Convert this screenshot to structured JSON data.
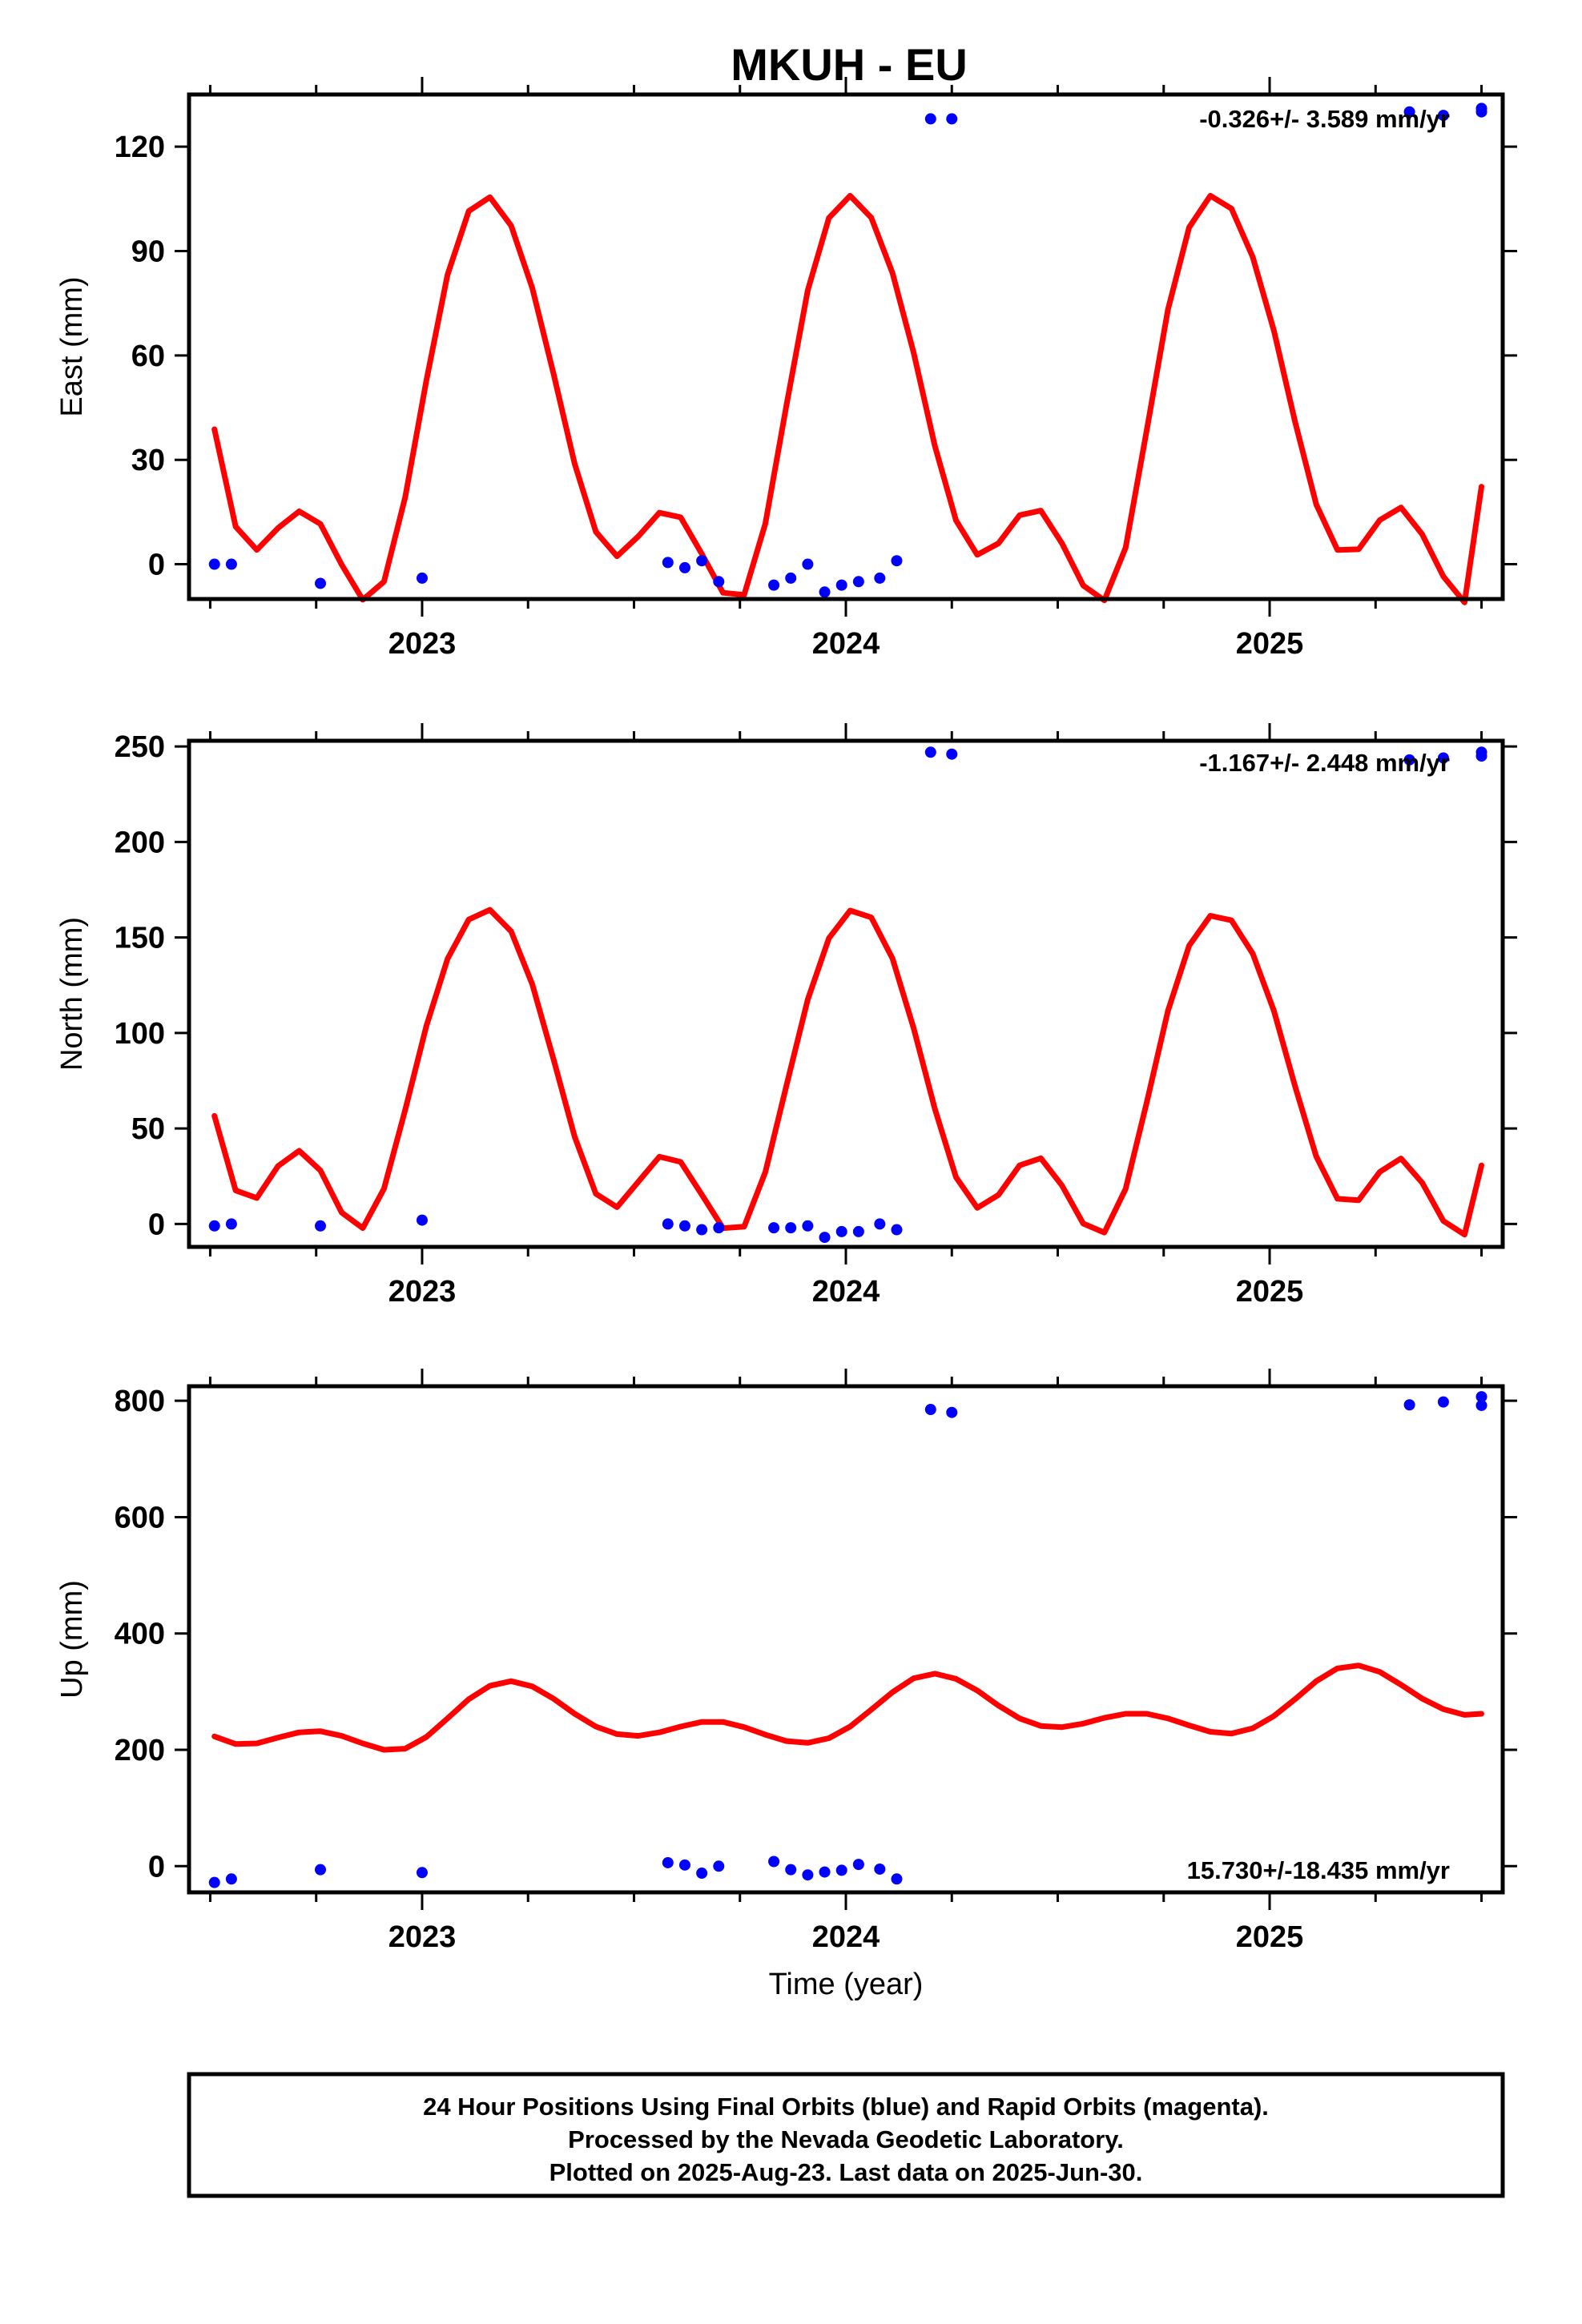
{
  "colors": {
    "data_points": "#0000ff",
    "model_curve": "#ff0000",
    "frame": "#000000"
  },
  "chart_data": {
    "title": "MKUH - EU",
    "xlabel": "Time (year)",
    "xlim": [
      2022.45,
      2025.55
    ],
    "xticks": [
      2023,
      2024,
      2025
    ],
    "xtick_labels": [
      "2023",
      "2024",
      "2025"
    ],
    "minor_xtick_step": 0.25,
    "grid": false,
    "footer": [
      "24 Hour Positions Using Final Orbits (blue) and Rapid Orbits (magenta).",
      "Processed by the Nevada Geodetic Laboratory.",
      "Plotted on 2025-Aug-23. Last data on 2025-Jun-30."
    ],
    "panels": [
      {
        "type": "scatter",
        "ylabel": "East (mm)",
        "ylim": [
          -10,
          135
        ],
        "yticks": [
          0,
          30,
          60,
          90,
          120
        ],
        "rate": "-0.326+/- 3.589 mm/yr",
        "rate_position": "top-right",
        "points": {
          "x": [
            2022.51,
            2022.55,
            2022.76,
            2023.0,
            2023.58,
            2023.62,
            2023.66,
            2023.7,
            2023.83,
            2023.87,
            2023.91,
            2023.95,
            2023.99,
            2024.03,
            2024.08,
            2024.12,
            2024.2,
            2024.25,
            2025.33,
            2025.41,
            2025.5,
            2025.5
          ],
          "y": [
            0,
            0,
            -5.5,
            -4,
            0.5,
            -1,
            1,
            -5,
            -6,
            -4,
            0,
            -8,
            -6,
            -5,
            -4,
            1,
            128,
            128,
            130,
            129,
            131,
            130
          ]
        },
        "curve": {
          "x": [
            2022.51,
            2022.56,
            2022.61,
            2022.66,
            2022.71,
            2022.76,
            2022.81,
            2022.86,
            2022.91,
            2022.96,
            2023.01,
            2023.06,
            2023.11,
            2023.16,
            2023.21,
            2023.26,
            2023.31,
            2023.36,
            2023.41,
            2023.46,
            2023.51,
            2023.56,
            2023.61,
            2023.66,
            2023.71,
            2023.76,
            2023.81,
            2023.86,
            2023.91,
            2023.96,
            2024.01,
            2024.06,
            2024.11,
            2024.16,
            2024.21,
            2024.26,
            2024.31,
            2024.36,
            2024.41,
            2024.46,
            2024.51,
            2024.56,
            2024.61,
            2024.66,
            2024.71,
            2024.76,
            2024.81,
            2024.86,
            2024.91,
            2024.96,
            2025.01,
            2025.06,
            2025.11,
            2025.16,
            2025.21,
            2025.26,
            2025.31,
            2025.36,
            2025.41,
            2025.46,
            2025.5
          ],
          "y": [
            38.8,
            10.8,
            4.1,
            10.4,
            15.2,
            11.6,
            -0.1,
            -10.2,
            -5.0,
            19.2,
            52.8,
            83.2,
            101.5,
            105.5,
            97.3,
            79.4,
            54.8,
            28.9,
            9.3,
            2.3,
            8.0,
            14.8,
            13.5,
            3.0,
            -8.2,
            -8.8,
            11.7,
            45.8,
            78.7,
            99.5,
            105.9,
            99.6,
            83.7,
            60.8,
            34.0,
            12.6,
            2.7,
            6.0,
            14.1,
            15.4,
            6.0,
            -6.1,
            -10.4,
            4.7,
            38.5,
            73.2,
            96.8,
            105.9,
            102.2,
            88.3,
            67.2,
            40.9,
            17.2,
            4.1,
            4.3,
            12.7,
            16.3,
            8.6,
            -3.5,
            -11.0,
            22.3
          ]
        }
      },
      {
        "type": "scatter",
        "ylabel": "North (mm)",
        "ylim": [
          -12,
          253
        ],
        "yticks": [
          0,
          50,
          100,
          150,
          200,
          250
        ],
        "rate": "-1.167+/- 2.448 mm/yr",
        "rate_position": "top-right",
        "points": {
          "x": [
            2022.51,
            2022.55,
            2022.76,
            2023.0,
            2023.58,
            2023.62,
            2023.66,
            2023.7,
            2023.83,
            2023.87,
            2023.91,
            2023.95,
            2023.99,
            2024.03,
            2024.08,
            2024.12,
            2024.2,
            2024.25,
            2025.33,
            2025.41,
            2025.5,
            2025.5
          ],
          "y": [
            -1,
            0,
            -1,
            2,
            0,
            -1,
            -3,
            -2,
            -2,
            -2,
            -1,
            -7,
            -4,
            -4,
            0,
            -3,
            247,
            246,
            243,
            244,
            247,
            245
          ]
        },
        "curve": {
          "x": [
            2022.51,
            2022.56,
            2022.61,
            2022.66,
            2022.71,
            2022.76,
            2022.81,
            2022.86,
            2022.91,
            2022.96,
            2023.01,
            2023.06,
            2023.11,
            2023.16,
            2023.21,
            2023.26,
            2023.31,
            2023.36,
            2023.41,
            2023.46,
            2023.51,
            2023.56,
            2023.61,
            2023.66,
            2023.71,
            2023.76,
            2023.81,
            2023.86,
            2023.91,
            2023.96,
            2024.01,
            2024.06,
            2024.11,
            2024.16,
            2024.21,
            2024.26,
            2024.31,
            2024.36,
            2024.41,
            2024.46,
            2024.51,
            2024.56,
            2024.61,
            2024.66,
            2024.71,
            2024.76,
            2024.81,
            2024.86,
            2024.91,
            2024.96,
            2025.01,
            2025.06,
            2025.11,
            2025.16,
            2025.21,
            2025.26,
            2025.31,
            2025.36,
            2025.41,
            2025.46,
            2025.5
          ],
          "y": [
            56.6,
            17.5,
            13.6,
            30.3,
            38.3,
            28.0,
            6.0,
            -2.2,
            18.5,
            59.6,
            103.7,
            138.8,
            159.4,
            164.5,
            153.2,
            125.5,
            86.3,
            45.7,
            15.8,
            8.8,
            22.1,
            35.2,
            32.5,
            15.4,
            -2.2,
            -1.4,
            27.2,
            72.6,
            117.5,
            149.6,
            164.1,
            160.5,
            139.0,
            102.5,
            60.3,
            24.5,
            8.4,
            15.2,
            30.7,
            34.4,
            20.1,
            0.2,
            -4.5,
            18.3,
            63.6,
            111.6,
            145.7,
            161.4,
            159.0,
            141.6,
            111.7,
            72.1,
            35.4,
            13.2,
            12.4,
            27.3,
            34.3,
            21.6,
            1.6,
            -5.6,
            30.7
          ]
        }
      },
      {
        "type": "scatter",
        "ylabel": "Up (mm)",
        "ylim": [
          -45,
          825
        ],
        "yticks": [
          0,
          200,
          400,
          600,
          800
        ],
        "rate": "15.730+/-18.435 mm/yr",
        "rate_position": "bottom-right",
        "points": {
          "x": [
            2022.51,
            2022.55,
            2022.76,
            2023.0,
            2023.58,
            2023.62,
            2023.66,
            2023.7,
            2023.83,
            2023.87,
            2023.91,
            2023.95,
            2023.99,
            2024.03,
            2024.08,
            2024.12,
            2024.2,
            2024.25,
            2025.33,
            2025.41,
            2025.5,
            2025.5
          ],
          "y": [
            -28,
            -22,
            -6,
            -11,
            6,
            2,
            -12,
            0,
            8,
            -6,
            -15,
            -10,
            -7,
            3,
            -5,
            -22,
            785,
            780,
            793,
            798,
            807,
            792
          ]
        },
        "curve": {
          "x": [
            2022.51,
            2022.56,
            2022.61,
            2022.66,
            2022.71,
            2022.76,
            2022.81,
            2022.86,
            2022.91,
            2022.96,
            2023.01,
            2023.06,
            2023.11,
            2023.16,
            2023.21,
            2023.26,
            2023.31,
            2023.36,
            2023.41,
            2023.46,
            2023.51,
            2023.56,
            2023.61,
            2023.66,
            2023.71,
            2023.76,
            2023.81,
            2023.86,
            2023.91,
            2023.96,
            2024.01,
            2024.06,
            2024.11,
            2024.16,
            2024.21,
            2024.26,
            2024.31,
            2024.36,
            2024.41,
            2024.46,
            2024.51,
            2024.56,
            2024.61,
            2024.66,
            2024.71,
            2024.76,
            2024.81,
            2024.86,
            2024.91,
            2024.96,
            2025.01,
            2025.06,
            2025.11,
            2025.16,
            2025.21,
            2025.26,
            2025.31,
            2025.36,
            2025.41,
            2025.46,
            2025.5
          ],
          "y": [
            223,
            210,
            211,
            221,
            230,
            232,
            224,
            211,
            200,
            202,
            222,
            254,
            287,
            310,
            318,
            309,
            288,
            262,
            240,
            227,
            224,
            230,
            240,
            248,
            248,
            239,
            226,
            215,
            212,
            220,
            240,
            269,
            299,
            323,
            331,
            322,
            302,
            276,
            254,
            241,
            239,
            245,
            255,
            262,
            262,
            254,
            242,
            231,
            228,
            237,
            258,
            287,
            318,
            340,
            345,
            334,
            312,
            288,
            270,
            260,
            262
          ]
        }
      }
    ]
  }
}
